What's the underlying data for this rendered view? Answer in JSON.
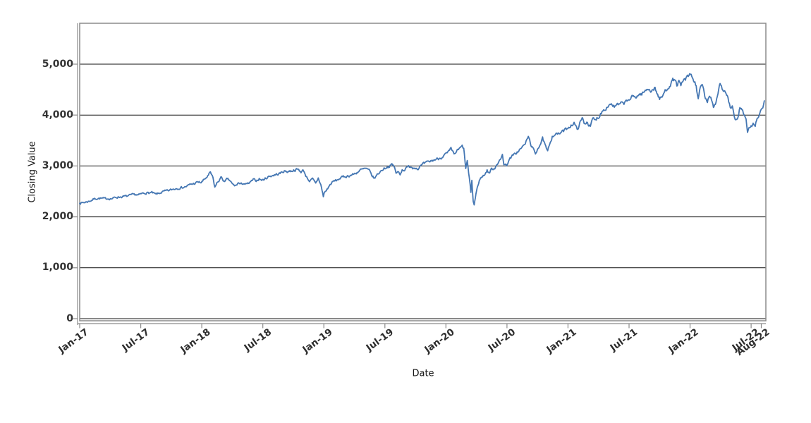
{
  "chart_data": {
    "type": "line",
    "title": "",
    "xlabel": "Date",
    "ylabel": "Closing Value",
    "legend": "none",
    "grid": "horizontal",
    "line_color": "#4577b3",
    "grid_color": "#111111",
    "frame_color": "#8b8b8b",
    "background_color": "#ffffff",
    "ylim": [
      0,
      5800
    ],
    "xlim_months": [
      0,
      67.45
    ],
    "y_ticks": [
      {
        "value": 0,
        "label": "0"
      },
      {
        "value": 1000,
        "label": "1,000"
      },
      {
        "value": 2000,
        "label": "2,000"
      },
      {
        "value": 3000,
        "label": "3,000"
      },
      {
        "value": 4000,
        "label": "4,000"
      },
      {
        "value": 5000,
        "label": "5,000"
      }
    ],
    "x_ticks": [
      {
        "month": 0,
        "label": "Jan-17"
      },
      {
        "month": 6,
        "label": "Jul-17"
      },
      {
        "month": 12,
        "label": "Jan-18"
      },
      {
        "month": 18,
        "label": "Jul-18"
      },
      {
        "month": 24,
        "label": "Jan-19"
      },
      {
        "month": 30,
        "label": "Jul-19"
      },
      {
        "month": 36,
        "label": "Jan-20"
      },
      {
        "month": 42,
        "label": "Jul-20"
      },
      {
        "month": 48,
        "label": "Jan-21"
      },
      {
        "month": 54,
        "label": "Jul-21"
      },
      {
        "month": 60,
        "label": "Jan-22"
      },
      {
        "month": 66,
        "label": "Jul-22"
      },
      {
        "month": 67,
        "label": "Aug-22"
      }
    ],
    "series": [
      {
        "name": "Closing Value",
        "x_unit": "months since Jan-2017",
        "points": [
          [
            0,
            2268
          ],
          [
            0.35,
            2280
          ],
          [
            0.7,
            2295
          ],
          [
            1.05,
            2316
          ],
          [
            1.4,
            2351
          ],
          [
            1.75,
            2364
          ],
          [
            2.1,
            2362
          ],
          [
            2.45,
            2356
          ],
          [
            2.8,
            2361
          ],
          [
            3.15,
            2357
          ],
          [
            3.5,
            2382
          ],
          [
            3.85,
            2391
          ],
          [
            4.2,
            2397
          ],
          [
            4.55,
            2404
          ],
          [
            4.9,
            2416
          ],
          [
            5.2,
            2433
          ],
          [
            5.5,
            2440
          ],
          [
            5.75,
            2423
          ],
          [
            6.1,
            2455
          ],
          [
            6.45,
            2472
          ],
          [
            6.8,
            2470
          ],
          [
            7.1,
            2476
          ],
          [
            7.45,
            2442
          ],
          [
            7.8,
            2460
          ],
          [
            8.1,
            2488
          ],
          [
            8.45,
            2505
          ],
          [
            8.8,
            2519
          ],
          [
            9.15,
            2542
          ],
          [
            9.5,
            2559
          ],
          [
            9.85,
            2572
          ],
          [
            10.2,
            2581
          ],
          [
            10.55,
            2602
          ],
          [
            10.9,
            2639
          ],
          [
            11.25,
            2652
          ],
          [
            11.6,
            2682
          ],
          [
            11.95,
            2674
          ],
          [
            12.3,
            2743
          ],
          [
            12.65,
            2810
          ],
          [
            12.85,
            2873
          ],
          [
            13.1,
            2762
          ],
          [
            13.28,
            2581
          ],
          [
            13.5,
            2662
          ],
          [
            13.75,
            2731
          ],
          [
            13.95,
            2780
          ],
          [
            14.25,
            2677
          ],
          [
            14.5,
            2747
          ],
          [
            14.75,
            2713
          ],
          [
            15,
            2641
          ],
          [
            15.3,
            2605
          ],
          [
            15.6,
            2670
          ],
          [
            15.8,
            2635
          ],
          [
            16.1,
            2663
          ],
          [
            16.4,
            2635
          ],
          [
            16.75,
            2670
          ],
          [
            17.05,
            2727
          ],
          [
            17.35,
            2712
          ],
          [
            17.65,
            2748
          ],
          [
            17.95,
            2718
          ],
          [
            18.3,
            2760
          ],
          [
            18.65,
            2798
          ],
          [
            19,
            2816
          ],
          [
            19.35,
            2833
          ],
          [
            19.7,
            2853
          ],
          [
            20.05,
            2898
          ],
          [
            20.4,
            2890
          ],
          [
            20.75,
            2902
          ],
          [
            21.1,
            2920
          ],
          [
            21.45,
            2931
          ],
          [
            21.75,
            2885
          ],
          [
            22,
            2914
          ],
          [
            22.3,
            2785
          ],
          [
            22.6,
            2705
          ],
          [
            22.9,
            2740
          ],
          [
            23.2,
            2650
          ],
          [
            23.45,
            2760
          ],
          [
            23.7,
            2633
          ],
          [
            23.95,
            2400
          ],
          [
            24.05,
            2476
          ],
          [
            24.25,
            2520
          ],
          [
            24.5,
            2596
          ],
          [
            24.75,
            2664
          ],
          [
            25,
            2704
          ],
          [
            25.3,
            2720
          ],
          [
            25.6,
            2760
          ],
          [
            25.9,
            2784
          ],
          [
            26.2,
            2796
          ],
          [
            26.55,
            2812
          ],
          [
            26.9,
            2834
          ],
          [
            27.25,
            2870
          ],
          [
            27.6,
            2920
          ],
          [
            27.95,
            2940
          ],
          [
            28.15,
            2946
          ],
          [
            28.45,
            2910
          ],
          [
            28.7,
            2822
          ],
          [
            28.95,
            2752
          ],
          [
            29.25,
            2830
          ],
          [
            29.55,
            2890
          ],
          [
            29.85,
            2942
          ],
          [
            30.15,
            2976
          ],
          [
            30.45,
            2996
          ],
          [
            30.7,
            3026
          ],
          [
            30.95,
            2980
          ],
          [
            31.1,
            2844
          ],
          [
            31.3,
            2888
          ],
          [
            31.5,
            2847
          ],
          [
            31.7,
            2924
          ],
          [
            31.95,
            2926
          ],
          [
            32.25,
            2979
          ],
          [
            32.55,
            2997
          ],
          [
            32.75,
            2962
          ],
          [
            33,
            2977
          ],
          [
            33.2,
            2940
          ],
          [
            33.5,
            2995
          ],
          [
            33.8,
            3038
          ],
          [
            34.15,
            3067
          ],
          [
            34.5,
            3094
          ],
          [
            34.85,
            3120
          ],
          [
            35.2,
            3141
          ],
          [
            35.55,
            3169
          ],
          [
            35.9,
            3221
          ],
          [
            36.2,
            3258
          ],
          [
            36.5,
            3330
          ],
          [
            36.8,
            3226
          ],
          [
            37.1,
            3298
          ],
          [
            37.35,
            3338
          ],
          [
            37.6,
            3386
          ],
          [
            37.75,
            3338
          ],
          [
            37.95,
            2954
          ],
          [
            38.1,
            3090
          ],
          [
            38.3,
            2750
          ],
          [
            38.45,
            2481
          ],
          [
            38.55,
            2711
          ],
          [
            38.68,
            2305
          ],
          [
            38.78,
            2237
          ],
          [
            38.95,
            2448
          ],
          [
            39.15,
            2627
          ],
          [
            39.35,
            2750
          ],
          [
            39.6,
            2790
          ],
          [
            39.85,
            2848
          ],
          [
            40.05,
            2912
          ],
          [
            40.25,
            2860
          ],
          [
            40.5,
            2940
          ],
          [
            40.8,
            2955
          ],
          [
            41,
            3044
          ],
          [
            41.2,
            3080
          ],
          [
            41.4,
            3124
          ],
          [
            41.55,
            3232
          ],
          [
            41.7,
            3042
          ],
          [
            41.95,
            3010
          ],
          [
            42.15,
            3100
          ],
          [
            42.45,
            3180
          ],
          [
            42.75,
            3226
          ],
          [
            43,
            3271
          ],
          [
            43.3,
            3327
          ],
          [
            43.65,
            3397
          ],
          [
            43.95,
            3500
          ],
          [
            44.1,
            3580
          ],
          [
            44.35,
            3427
          ],
          [
            44.6,
            3315
          ],
          [
            44.8,
            3237
          ],
          [
            45.05,
            3363
          ],
          [
            45.25,
            3420
          ],
          [
            45.5,
            3534
          ],
          [
            45.75,
            3400
          ],
          [
            46,
            3270
          ],
          [
            46.2,
            3443
          ],
          [
            46.45,
            3585
          ],
          [
            46.75,
            3630
          ],
          [
            47.05,
            3622
          ],
          [
            47.35,
            3663
          ],
          [
            47.7,
            3702
          ],
          [
            48,
            3756
          ],
          [
            48.3,
            3800
          ],
          [
            48.6,
            3841
          ],
          [
            48.9,
            3714
          ],
          [
            49.15,
            3830
          ],
          [
            49.4,
            3935
          ],
          [
            49.65,
            3830
          ],
          [
            49.85,
            3875
          ],
          [
            50.05,
            3811
          ],
          [
            50.2,
            3768
          ],
          [
            50.45,
            3940
          ],
          [
            50.65,
            3890
          ],
          [
            50.85,
            3943
          ],
          [
            51.05,
            3973
          ],
          [
            51.35,
            4080
          ],
          [
            51.65,
            4130
          ],
          [
            51.95,
            4181
          ],
          [
            52.25,
            4230
          ],
          [
            52.55,
            4160
          ],
          [
            52.8,
            4190
          ],
          [
            53.05,
            4204
          ],
          [
            53.35,
            4230
          ],
          [
            53.65,
            4250
          ],
          [
            53.95,
            4297
          ],
          [
            54.3,
            4350
          ],
          [
            54.65,
            4360
          ],
          [
            54.95,
            4395
          ],
          [
            55.25,
            4420
          ],
          [
            55.6,
            4470
          ],
          [
            55.95,
            4523
          ],
          [
            56.2,
            4470
          ],
          [
            56.5,
            4537
          ],
          [
            56.75,
            4440
          ],
          [
            57,
            4308
          ],
          [
            57.25,
            4360
          ],
          [
            57.55,
            4470
          ],
          [
            57.85,
            4550
          ],
          [
            58.05,
            4605
          ],
          [
            58.3,
            4680
          ],
          [
            58.5,
            4700
          ],
          [
            58.7,
            4590
          ],
          [
            58.9,
            4655
          ],
          [
            59.1,
            4567
          ],
          [
            59.35,
            4680
          ],
          [
            59.6,
            4710
          ],
          [
            59.9,
            4766
          ],
          [
            60.1,
            4797
          ],
          [
            60.35,
            4670
          ],
          [
            60.6,
            4577
          ],
          [
            60.8,
            4327
          ],
          [
            61,
            4516
          ],
          [
            61.2,
            4590
          ],
          [
            61.45,
            4380
          ],
          [
            61.7,
            4225
          ],
          [
            61.9,
            4374
          ],
          [
            62.1,
            4330
          ],
          [
            62.3,
            4170
          ],
          [
            62.55,
            4260
          ],
          [
            62.75,
            4460
          ],
          [
            62.95,
            4631
          ],
          [
            63.15,
            4530
          ],
          [
            63.4,
            4450
          ],
          [
            63.65,
            4392
          ],
          [
            63.95,
            4132
          ],
          [
            64.15,
            4155
          ],
          [
            64.35,
            3930
          ],
          [
            64.65,
            3901
          ],
          [
            64.9,
            4158
          ],
          [
            65.1,
            4132
          ],
          [
            65.3,
            4000
          ],
          [
            65.5,
            3900
          ],
          [
            65.65,
            3667
          ],
          [
            65.85,
            3750
          ],
          [
            66,
            3785
          ],
          [
            66.2,
            3820
          ],
          [
            66.4,
            3790
          ],
          [
            66.6,
            3960
          ],
          [
            66.8,
            3999
          ],
          [
            67,
            4130
          ],
          [
            67.15,
            4118
          ],
          [
            67.3,
            4280
          ]
        ]
      }
    ]
  }
}
